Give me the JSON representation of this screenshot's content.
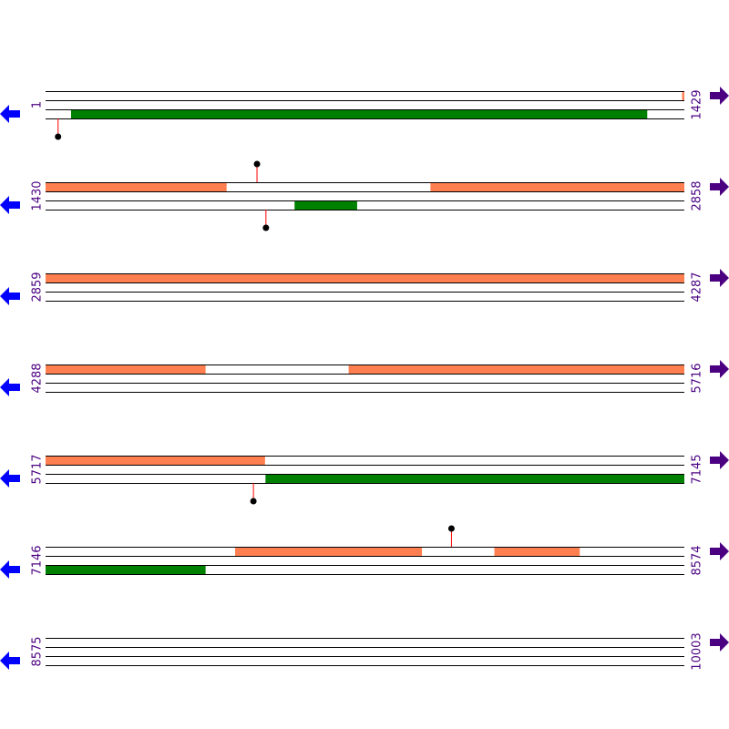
{
  "colors": {
    "forward_feature": "#ff7f50",
    "reverse_feature": "#008000",
    "track_line": "#000000",
    "label": "#4b0082",
    "left_arrow": "#0000ff",
    "right_arrow": "#4b0082",
    "marker_stem": "#ff0000",
    "marker_head": "#000000"
  },
  "icons": {
    "left": "arrow-left-icon",
    "right": "arrow-right-icon",
    "marker": "lollipop-marker-icon"
  },
  "rows": [
    {
      "start": 1,
      "end": 1429,
      "start_label": "1",
      "end_label": "1429",
      "forward": [
        [
          1425,
          1429
        ]
      ],
      "reverse": [
        [
          58,
          1346
        ]
      ],
      "markers": [
        {
          "pos": 29,
          "strand": "reverse"
        }
      ]
    },
    {
      "start": 1430,
      "end": 2858,
      "start_label": "1430",
      "end_label": "2858",
      "forward": [
        [
          1430,
          1834
        ],
        [
          2291,
          2858
        ]
      ],
      "reverse": [
        [
          1987,
          2126
        ]
      ],
      "markers": [
        {
          "pos": 1903,
          "strand": "forward"
        },
        {
          "pos": 1923,
          "strand": "reverse"
        }
      ]
    },
    {
      "start": 2859,
      "end": 4287,
      "start_label": "2859",
      "end_label": "4287",
      "forward": [
        [
          2859,
          4287
        ]
      ],
      "reverse": [],
      "markers": []
    },
    {
      "start": 4288,
      "end": 5716,
      "start_label": "4288",
      "end_label": "5716",
      "forward": [
        [
          4288,
          4645
        ],
        [
          4966,
          5716
        ]
      ],
      "reverse": [],
      "markers": []
    },
    {
      "start": 5717,
      "end": 7145,
      "start_label": "5717",
      "end_label": "7145",
      "forward": [
        [
          5717,
          6207
        ]
      ],
      "reverse": [
        [
          6209,
          7145
        ]
      ],
      "markers": [
        {
          "pos": 6182,
          "strand": "reverse"
        }
      ]
    },
    {
      "start": 7146,
      "end": 8574,
      "start_label": "7146",
      "end_label": "8574",
      "forward": [
        [
          7570,
          7987
        ],
        [
          8150,
          8340
        ]
      ],
      "reverse": [
        [
          7146,
          7503
        ]
      ],
      "markers": [
        {
          "pos": 8054,
          "strand": "forward"
        }
      ]
    },
    {
      "start": 8575,
      "end": 10003,
      "start_label": "8575",
      "end_label": "10003",
      "forward": [],
      "reverse": [],
      "markers": []
    }
  ]
}
